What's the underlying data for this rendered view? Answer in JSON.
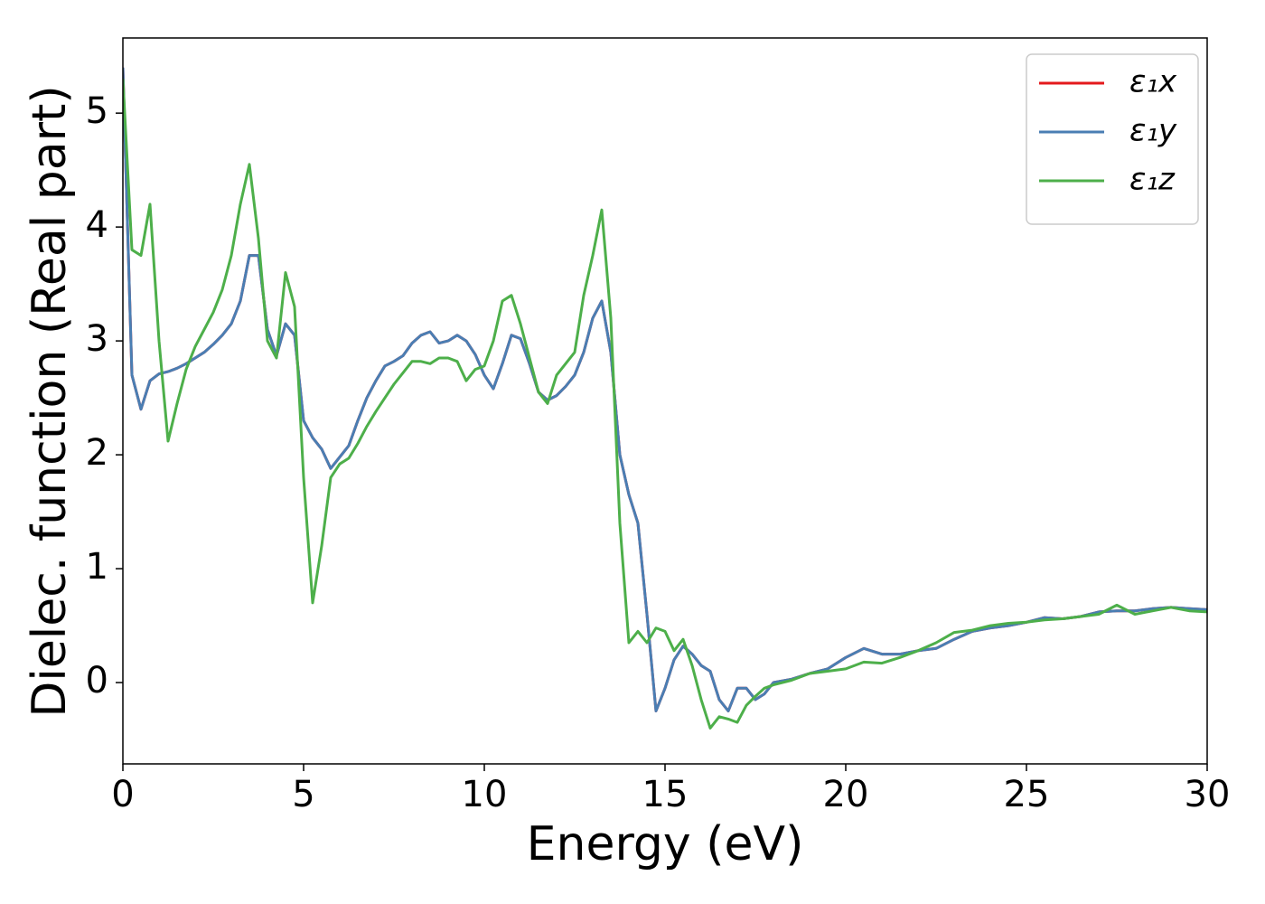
{
  "chart_data": {
    "type": "line",
    "xlabel": "Energy (eV)",
    "ylabel": "Dielec. function (Real part)",
    "x": [
      0,
      0.25,
      0.5,
      0.75,
      1,
      1.25,
      1.5,
      1.75,
      2,
      2.25,
      2.5,
      2.75,
      3,
      3.25,
      3.5,
      3.75,
      4,
      4.25,
      4.5,
      4.75,
      5,
      5.25,
      5.5,
      5.75,
      6,
      6.25,
      6.5,
      6.75,
      7,
      7.25,
      7.5,
      7.75,
      8,
      8.25,
      8.5,
      8.75,
      9,
      9.25,
      9.5,
      9.75,
      10,
      10.25,
      10.5,
      10.75,
      11,
      11.25,
      11.5,
      11.75,
      12,
      12.25,
      12.5,
      12.75,
      13,
      13.25,
      13.5,
      13.75,
      14,
      14.25,
      14.5,
      14.75,
      15,
      15.25,
      15.5,
      15.75,
      16,
      16.25,
      16.5,
      16.75,
      17,
      17.25,
      17.5,
      17.75,
      18,
      18.5,
      19,
      19.5,
      20,
      20.5,
      21,
      21.5,
      22,
      22.5,
      23,
      23.5,
      24,
      24.5,
      25,
      25.5,
      26,
      26.5,
      27,
      27.5,
      28,
      28.5,
      29,
      29.5,
      30
    ],
    "series": [
      {
        "name": "ε₁x",
        "color": "#e41a1c",
        "values": [
          5.4,
          2.7,
          2.4,
          2.65,
          2.71,
          2.73,
          2.76,
          2.8,
          2.85,
          2.9,
          2.97,
          3.05,
          3.15,
          3.35,
          3.75,
          3.75,
          3.1,
          2.87,
          3.15,
          3.05,
          2.3,
          2.15,
          2.05,
          1.88,
          1.98,
          2.08,
          2.3,
          2.5,
          2.65,
          2.78,
          2.82,
          2.87,
          2.98,
          3.05,
          3.08,
          2.98,
          3.0,
          3.05,
          3.0,
          2.88,
          2.7,
          2.58,
          2.8,
          3.05,
          3.02,
          2.8,
          2.55,
          2.48,
          2.52,
          2.6,
          2.7,
          2.9,
          3.2,
          3.35,
          2.9,
          2.0,
          1.65,
          1.4,
          0.6,
          -0.25,
          -0.05,
          0.2,
          0.32,
          0.25,
          0.15,
          0.1,
          -0.15,
          -0.25,
          -0.05,
          -0.05,
          -0.15,
          -0.1,
          0.0,
          0.03,
          0.08,
          0.12,
          0.22,
          0.3,
          0.25,
          0.25,
          0.28,
          0.3,
          0.38,
          0.45,
          0.48,
          0.5,
          0.53,
          0.57,
          0.56,
          0.58,
          0.62,
          0.63,
          0.63,
          0.65,
          0.66,
          0.65,
          0.64
        ]
      },
      {
        "name": "ε₁y",
        "color": "#4a7eb3",
        "values": [
          5.4,
          2.7,
          2.4,
          2.65,
          2.71,
          2.73,
          2.76,
          2.8,
          2.85,
          2.9,
          2.97,
          3.05,
          3.15,
          3.35,
          3.75,
          3.75,
          3.1,
          2.87,
          3.15,
          3.05,
          2.3,
          2.15,
          2.05,
          1.88,
          1.98,
          2.08,
          2.3,
          2.5,
          2.65,
          2.78,
          2.82,
          2.87,
          2.98,
          3.05,
          3.08,
          2.98,
          3.0,
          3.05,
          3.0,
          2.88,
          2.7,
          2.58,
          2.8,
          3.05,
          3.02,
          2.8,
          2.55,
          2.48,
          2.52,
          2.6,
          2.7,
          2.9,
          3.2,
          3.35,
          2.9,
          2.0,
          1.65,
          1.4,
          0.6,
          -0.25,
          -0.05,
          0.2,
          0.32,
          0.25,
          0.15,
          0.1,
          -0.15,
          -0.25,
          -0.05,
          -0.05,
          -0.15,
          -0.1,
          0.0,
          0.03,
          0.08,
          0.12,
          0.22,
          0.3,
          0.25,
          0.25,
          0.28,
          0.3,
          0.38,
          0.45,
          0.48,
          0.5,
          0.53,
          0.57,
          0.56,
          0.58,
          0.62,
          0.63,
          0.63,
          0.65,
          0.66,
          0.65,
          0.64
        ]
      },
      {
        "name": "ε₁z",
        "color": "#4daf4a",
        "values": [
          5.3,
          3.8,
          3.75,
          4.2,
          3.0,
          2.12,
          2.45,
          2.75,
          2.95,
          3.1,
          3.25,
          3.45,
          3.75,
          4.2,
          4.55,
          3.9,
          3.0,
          2.85,
          3.6,
          3.3,
          1.8,
          0.7,
          1.2,
          1.8,
          1.92,
          1.97,
          2.1,
          2.25,
          2.38,
          2.5,
          2.62,
          2.72,
          2.82,
          2.82,
          2.8,
          2.85,
          2.85,
          2.82,
          2.65,
          2.75,
          2.78,
          3.0,
          3.35,
          3.4,
          3.15,
          2.85,
          2.55,
          2.45,
          2.7,
          2.8,
          2.9,
          3.4,
          3.75,
          4.15,
          3.2,
          1.4,
          0.35,
          0.45,
          0.35,
          0.48,
          0.45,
          0.28,
          0.38,
          0.15,
          -0.15,
          -0.4,
          -0.3,
          -0.32,
          -0.35,
          -0.2,
          -0.12,
          -0.05,
          -0.02,
          0.02,
          0.08,
          0.1,
          0.12,
          0.18,
          0.17,
          0.22,
          0.28,
          0.35,
          0.44,
          0.46,
          0.5,
          0.52,
          0.53,
          0.55,
          0.56,
          0.58,
          0.6,
          0.68,
          0.6,
          0.63,
          0.66,
          0.63,
          0.62
        ]
      }
    ],
    "xlim": [
      0,
      30
    ],
    "xticks": [
      0,
      5,
      10,
      15,
      20,
      25,
      30
    ],
    "ylim": [
      -0.714,
      5.66
    ],
    "yticks": [
      0,
      1,
      2,
      3,
      4,
      5
    ],
    "grid": false,
    "legend": "upper right"
  }
}
